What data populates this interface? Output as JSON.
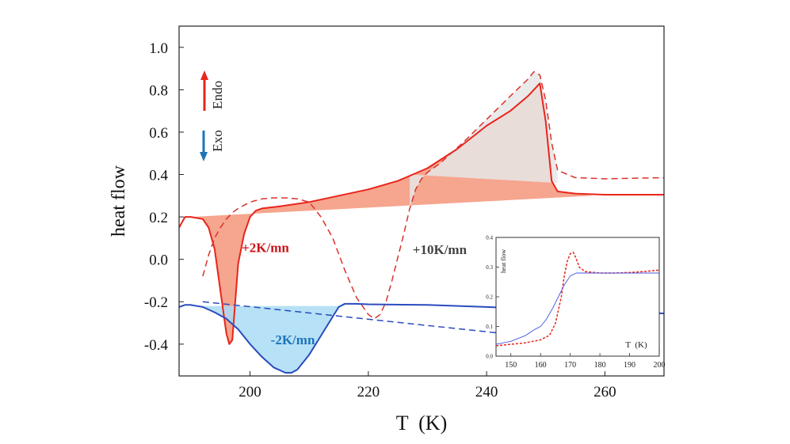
{
  "chart_data": {
    "type": "line",
    "xlabel": "T  (K)",
    "ylabel": "heat flow",
    "xlim": [
      188,
      270
    ],
    "ylim": [
      -0.55,
      1.1
    ],
    "xticks": [
      200,
      220,
      240,
      260
    ],
    "xtick_labels": [
      "200",
      "220",
      "240",
      "260"
    ],
    "yticks": [
      -0.4,
      -0.2,
      0.0,
      0.2,
      0.4,
      0.6,
      0.8,
      1.0
    ],
    "ytick_labels": [
      "-0.4",
      "-0.2",
      "0.0",
      "0.2",
      "0.4",
      "0.6",
      "0.8",
      "1.0"
    ],
    "series": [
      {
        "name": "+2K/mn",
        "color": "#e8251c",
        "style": "solid",
        "fill_color": "#f4957a",
        "baseline": [
          [
            190,
            0.2
          ],
          [
            258,
            0.3
          ]
        ],
        "x": [
          188,
          189,
          190,
          192,
          193,
          194,
          195,
          196,
          196.5,
          197,
          197.5,
          198,
          199,
          200,
          201,
          202,
          205,
          210,
          215,
          220,
          225,
          230,
          235,
          240,
          244,
          247,
          249,
          250,
          251,
          252,
          255,
          260,
          270
        ],
        "y": [
          0.15,
          0.2,
          0.2,
          0.19,
          0.15,
          0.05,
          -0.15,
          -0.35,
          -0.4,
          -0.38,
          -0.2,
          -0.02,
          0.12,
          0.2,
          0.23,
          0.24,
          0.25,
          0.27,
          0.3,
          0.33,
          0.37,
          0.43,
          0.52,
          0.63,
          0.7,
          0.77,
          0.83,
          0.65,
          0.37,
          0.32,
          0.31,
          0.305,
          0.305
        ]
      },
      {
        "name": "+10K/mn",
        "color": "#d9322c",
        "style": "dashed",
        "fill_color": "#e6e6e6",
        "baseline": [
          [
            227,
            0.4
          ],
          [
            252,
            0.36
          ]
        ],
        "x": [
          192,
          193,
          194,
          195,
          196,
          197,
          198,
          200,
          202,
          204,
          206,
          208,
          210,
          212,
          214,
          216,
          218,
          220,
          221,
          222,
          223,
          224,
          226,
          227,
          228,
          229,
          230,
          232,
          236,
          240,
          244,
          247,
          248,
          249,
          250,
          251,
          252,
          255,
          260,
          270
        ],
        "y": [
          -0.08,
          0.02,
          0.1,
          0.15,
          0.19,
          0.22,
          0.24,
          0.27,
          0.285,
          0.29,
          0.29,
          0.285,
          0.27,
          0.2,
          0.1,
          -0.05,
          -0.18,
          -0.26,
          -0.28,
          -0.26,
          -0.2,
          -0.1,
          0.12,
          0.24,
          0.33,
          0.38,
          0.41,
          0.45,
          0.55,
          0.66,
          0.77,
          0.85,
          0.885,
          0.87,
          0.75,
          0.55,
          0.42,
          0.385,
          0.38,
          0.385
        ]
      },
      {
        "name": "-2K/mn",
        "color": "#2a4bbf",
        "style": "solid",
        "fill_color": "#a9dcf5",
        "baseline": [
          [
            190,
            -0.22
          ],
          [
            216,
            -0.22
          ]
        ],
        "x": [
          188,
          189,
          190,
          192,
          194,
          196,
          198,
          200,
          202,
          204,
          206,
          207,
          208,
          210,
          212,
          214,
          215,
          216,
          218,
          220,
          230,
          240,
          250,
          260,
          270
        ],
        "y": [
          -0.225,
          -0.215,
          -0.215,
          -0.225,
          -0.25,
          -0.28,
          -0.33,
          -0.4,
          -0.46,
          -0.51,
          -0.535,
          -0.535,
          -0.52,
          -0.45,
          -0.36,
          -0.27,
          -0.225,
          -0.21,
          -0.21,
          -0.212,
          -0.215,
          -0.225,
          -0.235,
          -0.245,
          -0.255
        ]
      },
      {
        "name": "-2K/mn baseline",
        "color": "#2a4bbf",
        "style": "dashed",
        "x": [
          192,
          270
        ],
        "y": [
          -0.2,
          -0.43
        ]
      }
    ],
    "annotations": [
      {
        "text": "+2K/mn",
        "x": 198.6,
        "y": 0.035,
        "color": "#c8151b"
      },
      {
        "text": "+10K/mn",
        "x": 227.5,
        "y": 0.025,
        "color": "#444444"
      },
      {
        "text": "-2K/mn",
        "x": 203.5,
        "y": -0.4,
        "color": "#1e74b8"
      }
    ],
    "legend": {
      "endo_label": "Endo",
      "exo_label": "Exo",
      "endo_color": "#e8251c",
      "exo_color": "#1e74b8"
    },
    "inset": {
      "type": "line",
      "xlabel": "T  (K)",
      "ylabel": "heat flow",
      "xlim": [
        145,
        200
      ],
      "ylim": [
        0.0,
        0.4
      ],
      "xticks": [
        150,
        160,
        170,
        180,
        190,
        200
      ],
      "xtick_labels": [
        "150",
        "160",
        "170",
        "180",
        "190",
        "200"
      ],
      "yticks": [
        0.0,
        0.1,
        0.2,
        0.3,
        0.4
      ],
      "ytick_labels": [
        "0.0",
        "0.1",
        "0.2",
        "0.3",
        "0.4"
      ],
      "series": [
        {
          "name": "inset dashed",
          "color": "#e8251c",
          "style": "dashed",
          "x": [
            145,
            150,
            155,
            160,
            163,
            165,
            167,
            168,
            169,
            170,
            171,
            172,
            173,
            175,
            180,
            185,
            190,
            195,
            200
          ],
          "y": [
            0.035,
            0.04,
            0.045,
            0.055,
            0.07,
            0.11,
            0.2,
            0.27,
            0.32,
            0.345,
            0.35,
            0.33,
            0.3,
            0.285,
            0.28,
            0.28,
            0.282,
            0.285,
            0.29
          ]
        },
        {
          "name": "inset solid",
          "color": "#4455dd",
          "style": "solid",
          "x": [
            145,
            150,
            155,
            158,
            160,
            162,
            164,
            166,
            168,
            170,
            172,
            175,
            180,
            185,
            190,
            200
          ],
          "y": [
            0.04,
            0.05,
            0.07,
            0.09,
            0.1,
            0.125,
            0.16,
            0.2,
            0.24,
            0.27,
            0.28,
            0.28,
            0.28,
            0.28,
            0.28,
            0.28
          ]
        }
      ]
    }
  }
}
